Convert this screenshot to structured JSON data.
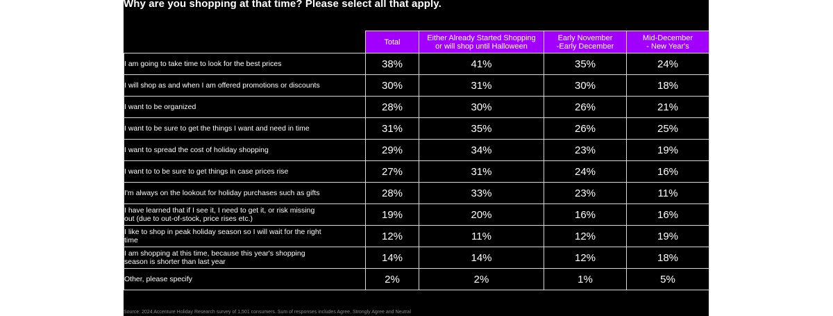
{
  "title": "Why are you shopping at that time? Please select all that apply.",
  "source": "Source: 2024 Accenture Holiday Research survey of 1,501 consumers. Sum of responses includes Agree, Strongly Agree and Neutral",
  "colors": {
    "header_bg": "#a100ff",
    "background": "#000000",
    "text": "#ffffff",
    "border": "#d8d8d8"
  },
  "chart_data": {
    "type": "table",
    "title": "Why are you shopping at that time? Please select all that apply.",
    "columns": [
      "Total",
      "Either Already Started Shopping or will shop until Halloween",
      "Early November -Early December",
      "Mid-December - New Year's"
    ],
    "column_lines": [
      [
        "Total"
      ],
      [
        "Either Already Started Shopping",
        "or will shop until Halloween"
      ],
      [
        "Early November",
        "-Early December"
      ],
      [
        "Mid-December",
        "- New Year's"
      ]
    ],
    "rows": [
      {
        "label": "I am going to take time to look for the best prices",
        "values": [
          "38%",
          "41%",
          "35%",
          "24%"
        ]
      },
      {
        "label": "I will shop as and when I am offered promotions or discounts",
        "values": [
          "30%",
          "31%",
          "30%",
          "18%"
        ]
      },
      {
        "label": "I want to be organized",
        "values": [
          "28%",
          "30%",
          "26%",
          "21%"
        ]
      },
      {
        "label": "I want to be sure to get the things I want and need in time",
        "values": [
          "31%",
          "35%",
          "26%",
          "25%"
        ]
      },
      {
        "label": "I want to spread the cost of holiday shopping",
        "values": [
          "29%",
          "34%",
          "23%",
          "19%"
        ]
      },
      {
        "label": "I want to to be sure to get things in case prices rise",
        "values": [
          "27%",
          "31%",
          "24%",
          "16%"
        ]
      },
      {
        "label": "I'm always on the lookout for holiday purchases such as gifts",
        "values": [
          "28%",
          "33%",
          "23%",
          "11%"
        ]
      },
      {
        "label": "I have learned that if I see it, I need to get it, or risk missing out (due to out-of-stock, price rises etc.)",
        "values": [
          "19%",
          "20%",
          "16%",
          "16%"
        ]
      },
      {
        "label": "I like to shop in peak holiday season so I will wait for the right time",
        "values": [
          "12%",
          "11%",
          "12%",
          "19%"
        ]
      },
      {
        "label": "I am shopping at this time, because this year's shopping season is shorter than last year",
        "values": [
          "14%",
          "14%",
          "12%",
          "18%"
        ]
      },
      {
        "label": "Other, please specify",
        "values": [
          "2%",
          "2%",
          "1%",
          "5%"
        ]
      }
    ]
  }
}
